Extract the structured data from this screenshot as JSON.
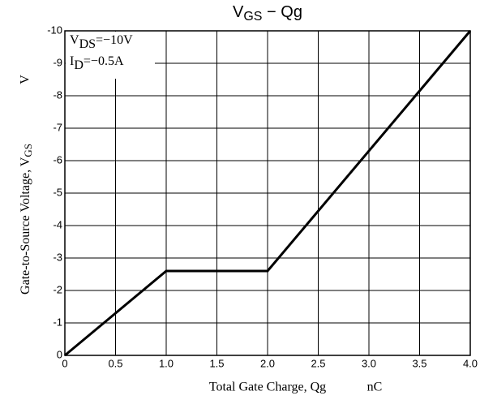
{
  "chart_data": {
    "type": "line",
    "title": [
      "V",
      "GS",
      " − Qg"
    ],
    "annotations": [
      [
        "V",
        "DS",
        "=−10V"
      ],
      [
        "I",
        "D",
        "=−0.5A"
      ]
    ],
    "ylabel": [
      "Gate-to-Source Voltage, V",
      "GS"
    ],
    "yunit": "V",
    "xlabel": "Total Gate Charge, Qg",
    "xunit": "nC",
    "x": [
      0,
      1.0,
      2.0,
      4.0
    ],
    "series": [
      {
        "color": "#000000",
        "values": [
          0,
          -2.6,
          -2.6,
          -10
        ]
      }
    ],
    "xlim": [
      0,
      4
    ],
    "ylim": [
      0,
      -10
    ],
    "xticks": [
      0,
      0.5,
      {
        "value": 1,
        "label": "1.0"
      },
      1.5,
      {
        "value": 2,
        "label": "2.0"
      },
      2.5,
      {
        "value": 3,
        "label": "3.0"
      },
      3.5,
      {
        "value": 4,
        "label": "4.0"
      }
    ],
    "yticks": [
      -10,
      -9,
      -8,
      -7,
      -6,
      -5,
      -4,
      -3,
      -2,
      -1,
      0
    ],
    "grid": true
  }
}
